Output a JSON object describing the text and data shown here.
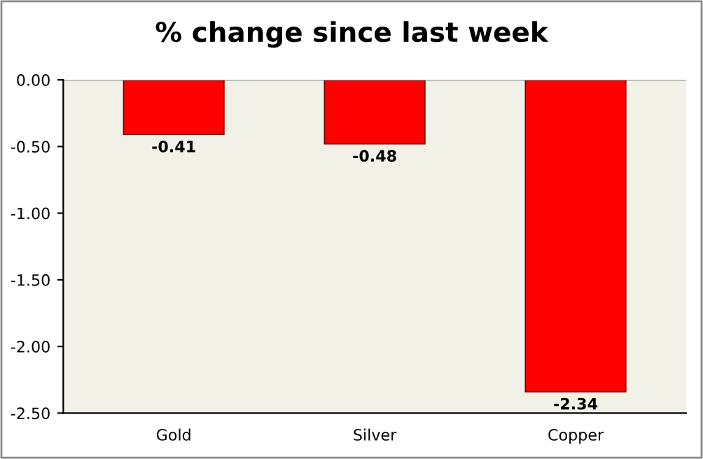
{
  "chart_data": {
    "type": "bar",
    "title": "% change since last week",
    "categories": [
      "Gold",
      "Silver",
      "Copper"
    ],
    "values": [
      -0.41,
      -0.48,
      -2.34
    ],
    "color": "#ff0000",
    "ylim": [
      -2.5,
      0
    ],
    "yticks": [
      {
        "value": 0,
        "label": "0.00"
      },
      {
        "value": -0.5,
        "label": "-0.50"
      },
      {
        "value": -1,
        "label": "-1.00"
      },
      {
        "value": -1.5,
        "label": "-1.50"
      },
      {
        "value": -2,
        "label": "-2.00"
      },
      {
        "value": -2.5,
        "label": "-2.50"
      }
    ],
    "data_labels": true,
    "grid": false,
    "legend": false
  }
}
